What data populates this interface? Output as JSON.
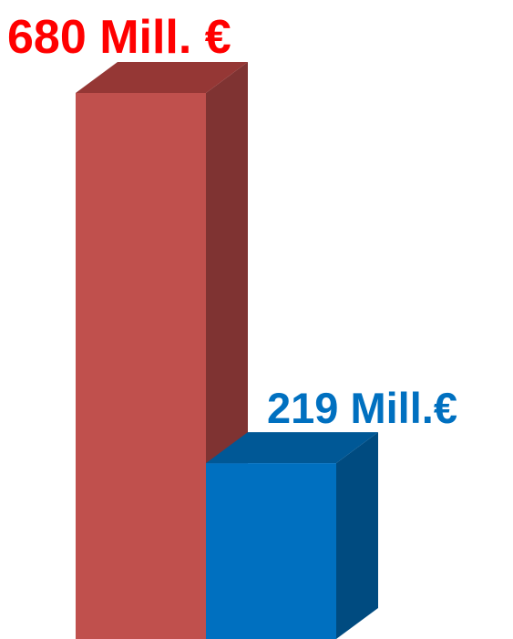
{
  "chart_data": {
    "type": "bar3d",
    "values": [
      680,
      219
    ],
    "value_labels": [
      "680 Mill. €",
      "219 Mill.€"
    ],
    "colors": [
      "#c0504d",
      "#0070c0"
    ],
    "side_colors": [
      "#7f3332",
      "#004b80"
    ],
    "top_colors": [
      "#953735",
      "#005896"
    ]
  }
}
